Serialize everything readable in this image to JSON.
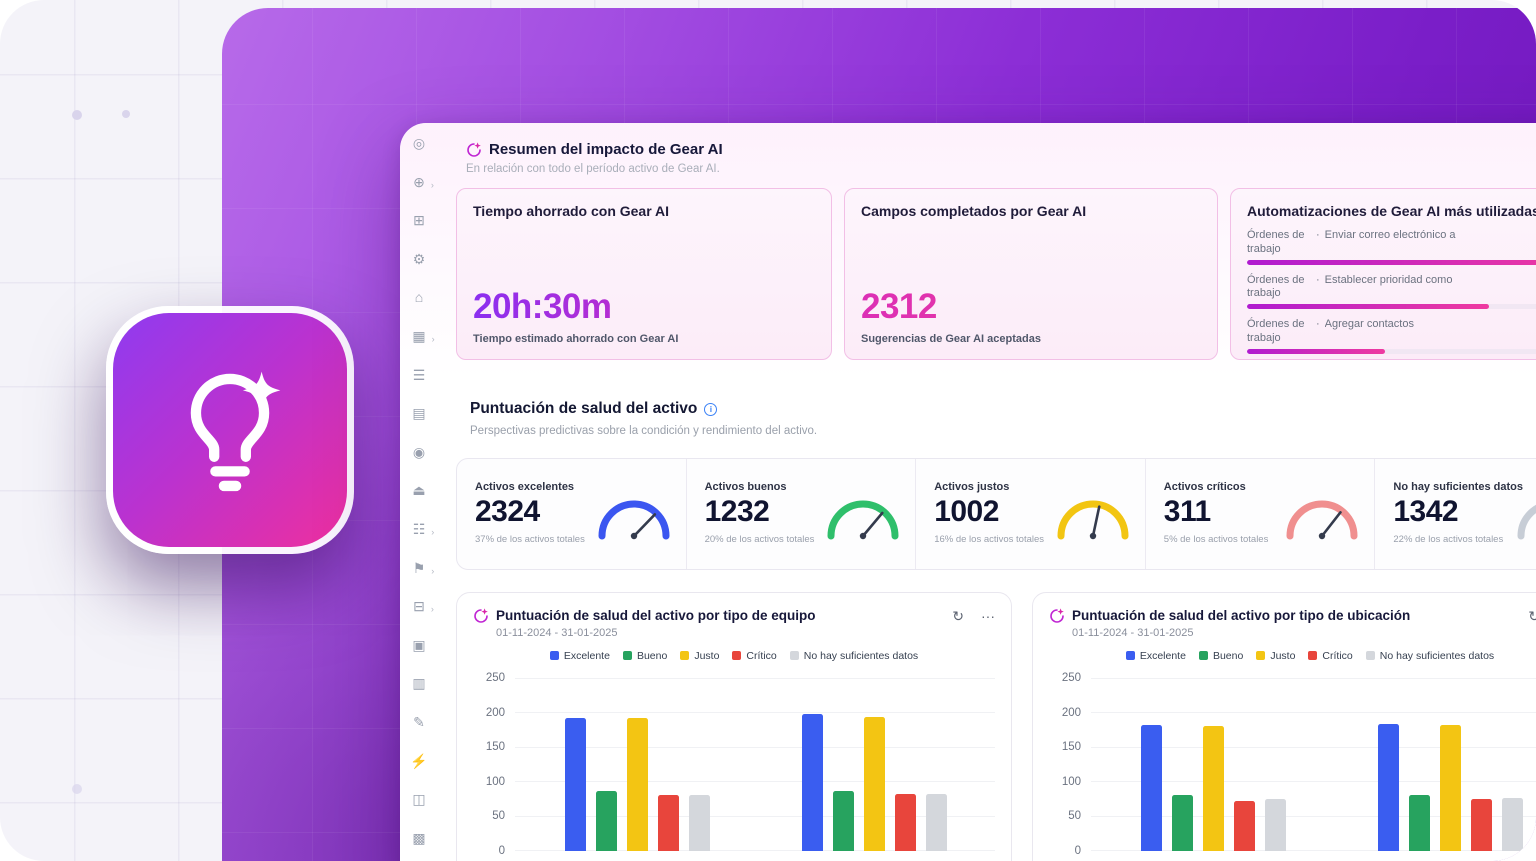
{
  "icons": {
    "info": "i",
    "refresh": "↻",
    "menu": "···",
    "chevron": "›"
  },
  "sidebar": {
    "icons": [
      {
        "name": "compass",
        "glyph": "◎",
        "chevron": false
      },
      {
        "name": "globe",
        "glyph": "⊕",
        "chevron": true
      },
      {
        "name": "apps-grid",
        "glyph": "⊞",
        "chevron": false
      },
      {
        "name": "automations",
        "glyph": "⚙",
        "chevron": false
      },
      {
        "name": "company",
        "glyph": "⌂",
        "chevron": false
      },
      {
        "name": "calendar",
        "glyph": "▦",
        "chevron": true
      },
      {
        "name": "work-orders",
        "glyph": "☰",
        "chevron": false
      },
      {
        "name": "assets-table",
        "glyph": "▤",
        "chevron": false
      },
      {
        "name": "contacts",
        "glyph": "◉",
        "chevron": false
      },
      {
        "name": "export",
        "glyph": "⏏",
        "chevron": false
      },
      {
        "name": "teams",
        "glyph": "☷",
        "chevron": true
      },
      {
        "name": "tags",
        "glyph": "⚑",
        "chevron": true
      },
      {
        "name": "procurement",
        "glyph": "⊟",
        "chevron": true
      },
      {
        "name": "wallet",
        "glyph": "▣",
        "chevron": false
      },
      {
        "name": "analytics",
        "glyph": "▥",
        "chevron": false
      },
      {
        "name": "documents",
        "glyph": "✎",
        "chevron": false
      },
      {
        "name": "integrations",
        "glyph": "⚡",
        "chevron": false
      },
      {
        "name": "facilities",
        "glyph": "◫",
        "chevron": false
      },
      {
        "name": "modules",
        "glyph": "▩",
        "chevron": false
      }
    ]
  },
  "impact": {
    "title": "Resumen del impacto de Gear AI",
    "subtitle": "En relación con todo el período activo de Gear AI.",
    "time_saved": {
      "title": "Tiempo ahorrado con Gear AI",
      "value": "20h:30m",
      "caption": "Tiempo estimado ahorrado con Gear AI"
    },
    "fields_completed": {
      "title": "Campos completados por Gear AI",
      "value": "2312",
      "caption": "Sugerencias de Gear AI aceptadas"
    },
    "automations": {
      "title": "Automatizaciones de Gear AI más utilizadas",
      "rows": [
        {
          "entity": "Órdenes de trabajo",
          "separator": "·",
          "action": "Enviar correo electrónico a",
          "bar_pct": 97
        },
        {
          "entity": "Órdenes de trabajo",
          "separator": "·",
          "action": "Establecer prioridad como",
          "bar_pct": 70
        },
        {
          "entity": "Órdenes de trabajo",
          "separator": "·",
          "action": "Agregar contactos",
          "bar_pct": 40
        }
      ]
    }
  },
  "health": {
    "title": "Puntuación de salud del activo",
    "subtitle": "Perspectivas predictivas sobre la condición y rendimiento del activo.",
    "gauges": [
      {
        "label": "Activos excelentes",
        "value": "2324",
        "caption": "37% de los activos totales",
        "color": "#3b56f0",
        "needle_deg": 44
      },
      {
        "label": "Activos buenos",
        "value": "1232",
        "caption": "20% de los activos totales",
        "color": "#2fbf6b",
        "needle_deg": 40
      },
      {
        "label": "Activos justos",
        "value": "1002",
        "caption": "16% de los activos totales",
        "color": "#f2c512",
        "needle_deg": 12
      },
      {
        "label": "Activos críticos",
        "value": "311",
        "caption": "5% de los activos totales",
        "color": "#f08f8f",
        "needle_deg": 38
      },
      {
        "label": "No hay suficientes datos",
        "value": "1342",
        "caption": "22% de los activos totales",
        "color": "#c7cdd6",
        "needle_deg": 30
      }
    ]
  },
  "chart_data": [
    {
      "type": "bar",
      "title": "Puntuación de salud del activo por tipo de equipo",
      "date_range": "01-11-2024 - 31-01-2025",
      "y_ticks": [
        250,
        200,
        150,
        100,
        50,
        0
      ],
      "ylim": [
        0,
        250
      ],
      "grid": true,
      "legend_position": "top",
      "categories": [
        "",
        ""
      ],
      "series": [
        {
          "name": "Excelente",
          "color": "#3a5df0",
          "values": [
            192,
            198
          ]
        },
        {
          "name": "Bueno",
          "color": "#27a35f",
          "values": [
            86,
            86
          ]
        },
        {
          "name": "Justo",
          "color": "#f3c513",
          "values": [
            192,
            194
          ]
        },
        {
          "name": "Crítico",
          "color": "#e8453c",
          "values": [
            80,
            82
          ]
        },
        {
          "name": "No hay suficientes datos",
          "color": "#d4d7dc",
          "values": [
            80,
            82
          ]
        }
      ]
    },
    {
      "type": "bar",
      "title": "Puntuación de salud del activo por tipo de ubicación",
      "date_range": "01-11-2024 - 31-01-2025",
      "y_ticks": [
        250,
        200,
        150,
        100,
        50,
        0
      ],
      "ylim": [
        0,
        250
      ],
      "grid": true,
      "legend_position": "top",
      "categories": [
        "",
        ""
      ],
      "series": [
        {
          "name": "Excelente",
          "color": "#3a5df0",
          "values": [
            182,
            184
          ]
        },
        {
          "name": "Bueno",
          "color": "#27a35f",
          "values": [
            80,
            80
          ]
        },
        {
          "name": "Justo",
          "color": "#f3c513",
          "values": [
            180,
            182
          ]
        },
        {
          "name": "Crítico",
          "color": "#e8453c",
          "values": [
            72,
            74
          ]
        },
        {
          "name": "No hay suficientes datos",
          "color": "#d4d7dc",
          "values": [
            74,
            76
          ]
        }
      ]
    }
  ]
}
